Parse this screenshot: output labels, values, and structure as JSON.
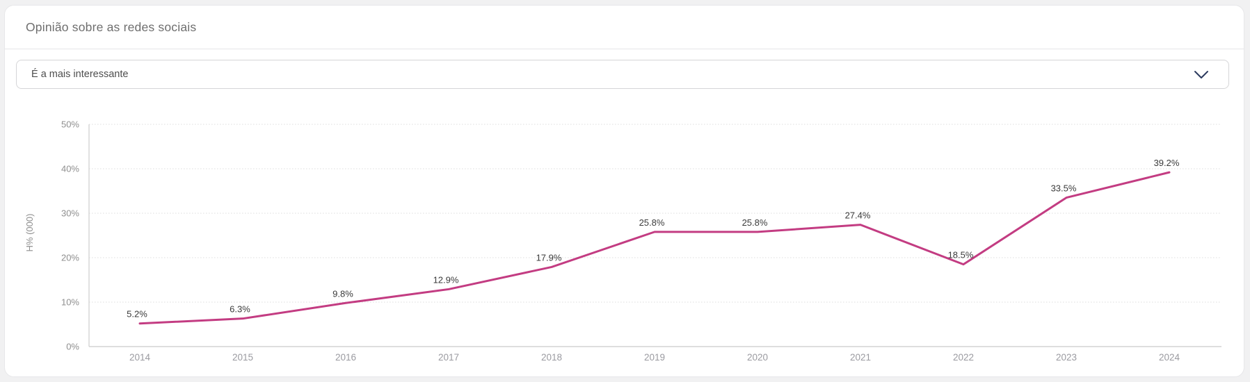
{
  "header": {
    "title": "Opinião sobre as redes sociais"
  },
  "filter": {
    "selected_option": "É a mais interessante",
    "chevron_icon": "chevron-down"
  },
  "chart_data": {
    "type": "line",
    "title": "Opinião sobre as redes sociais",
    "series_name": "É a mais interessante",
    "x": [
      "2014",
      "2015",
      "2016",
      "2017",
      "2018",
      "2019",
      "2020",
      "2021",
      "2022",
      "2023",
      "2024"
    ],
    "values": [
      5.2,
      6.3,
      9.8,
      12.9,
      17.9,
      25.8,
      25.8,
      27.4,
      18.5,
      33.5,
      39.2
    ],
    "data_labels": [
      "5.2%",
      "6.3%",
      "9.8%",
      "12.9%",
      "17.9%",
      "25.8%",
      "25.8%",
      "27.4%",
      "18.5%",
      "33.5%",
      "39.2%"
    ],
    "xlabel": "",
    "ylabel": "H% (000)",
    "ylim": [
      0,
      50
    ],
    "yticks": [
      "0%",
      "10%",
      "20%",
      "30%",
      "40%",
      "50%"
    ],
    "grid": "horizontal dotted",
    "legend_position": "none",
    "line_color": "#C33C82"
  },
  "colors": {
    "accent_line": "#C33C82",
    "page_background": "#f1f1f2",
    "card_background": "#ffffff",
    "axis_tick_text": "#8f8f8f",
    "x_tick_text": "#9a9aa0",
    "data_label_text": "#3a3a3a",
    "chevron": "#2c3a5e",
    "gridline": "#dcdcdc",
    "axis_line": "#d4d4d4"
  }
}
